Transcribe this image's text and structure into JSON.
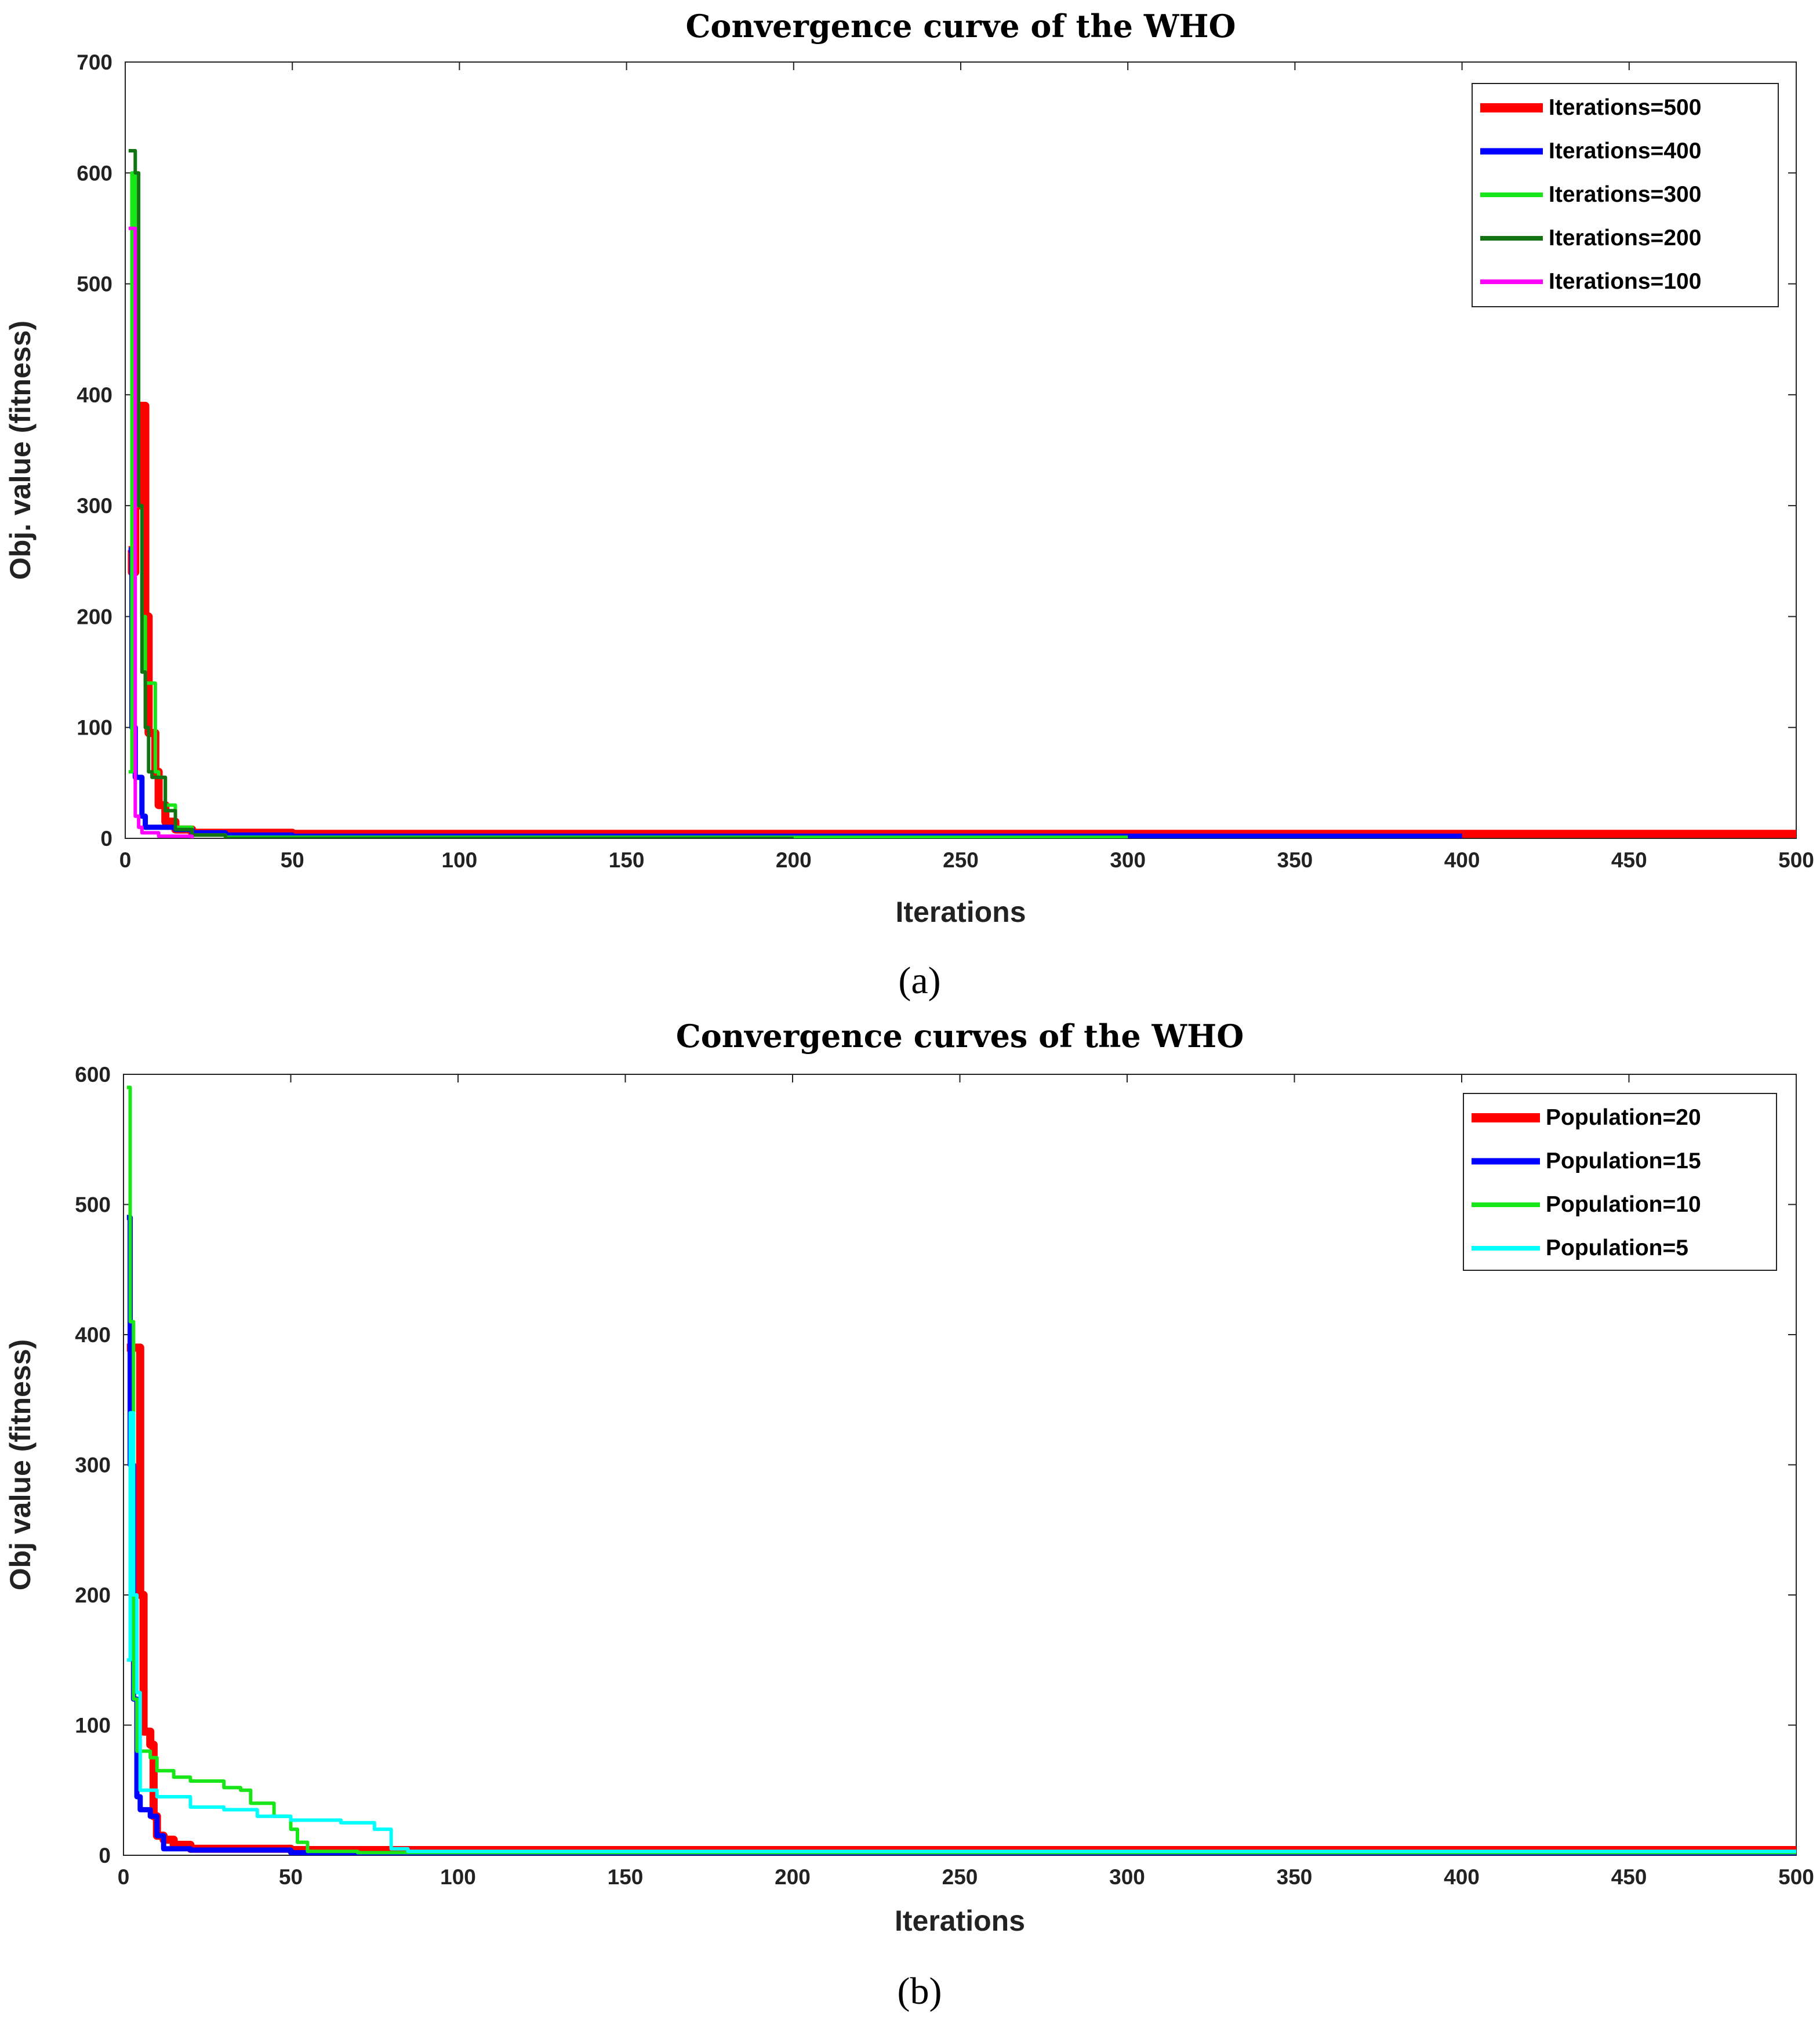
{
  "chart_data": [
    {
      "type": "line",
      "title": "Convergence curve of the WHO",
      "xlabel": "Iterations",
      "ylabel": "Obj. value (fitness)",
      "xlim": [
        0,
        500
      ],
      "ylim": [
        0,
        700
      ],
      "xticks": [
        0,
        50,
        100,
        150,
        200,
        250,
        300,
        350,
        400,
        450,
        500
      ],
      "yticks": [
        0,
        100,
        200,
        300,
        400,
        500,
        600,
        700
      ],
      "grid": false,
      "legend": "top-right",
      "caption": "(a)",
      "series": [
        {
          "name": "Iterations=500",
          "color": "#ff0000",
          "width": 14,
          "points": [
            [
              1,
              260
            ],
            [
              2,
              240
            ],
            [
              3,
              300
            ],
            [
              4,
              390
            ],
            [
              5,
              390
            ],
            [
              6,
              200
            ],
            [
              7,
              95
            ],
            [
              8,
              95
            ],
            [
              9,
              60
            ],
            [
              10,
              30
            ],
            [
              12,
              15
            ],
            [
              15,
              8
            ],
            [
              20,
              5
            ],
            [
              30,
              5
            ],
            [
              50,
              4
            ],
            [
              100,
              4
            ],
            [
              200,
              4
            ],
            [
              300,
              4
            ],
            [
              400,
              4
            ],
            [
              500,
              4
            ]
          ]
        },
        {
          "name": "Iterations=400",
          "color": "#0000ff",
          "width": 9,
          "points": [
            [
              1,
              260
            ],
            [
              2,
              100
            ],
            [
              3,
              55
            ],
            [
              4,
              55
            ],
            [
              5,
              20
            ],
            [
              6,
              10
            ],
            [
              10,
              10
            ],
            [
              15,
              8
            ],
            [
              20,
              5
            ],
            [
              30,
              3
            ],
            [
              50,
              2
            ],
            [
              100,
              2
            ],
            [
              200,
              2
            ],
            [
              300,
              2
            ],
            [
              400,
              2
            ]
          ]
        },
        {
          "name": "Iterations=300",
          "color": "#19e619",
          "width": 6,
          "points": [
            [
              1,
              60
            ],
            [
              2,
              600
            ],
            [
              3,
              300
            ],
            [
              5,
              200
            ],
            [
              6,
              140
            ],
            [
              8,
              140
            ],
            [
              9,
              60
            ],
            [
              10,
              55
            ],
            [
              12,
              30
            ],
            [
              15,
              10
            ],
            [
              20,
              3
            ],
            [
              30,
              1
            ],
            [
              50,
              1
            ],
            [
              100,
              1
            ],
            [
              200,
              1
            ],
            [
              300,
              1
            ]
          ]
        },
        {
          "name": "Iterations=200",
          "color": "#137313",
          "width": 6,
          "points": [
            [
              1,
              620
            ],
            [
              2,
              620
            ],
            [
              3,
              600
            ],
            [
              4,
              300
            ],
            [
              5,
              150
            ],
            [
              6,
              100
            ],
            [
              7,
              60
            ],
            [
              8,
              55
            ],
            [
              10,
              55
            ],
            [
              12,
              25
            ],
            [
              15,
              8
            ],
            [
              20,
              3
            ],
            [
              30,
              0
            ],
            [
              50,
              0
            ],
            [
              100,
              0
            ],
            [
              200,
              0
            ]
          ]
        },
        {
          "name": "Iterations=100",
          "color": "#ff00ff",
          "width": 6,
          "points": [
            [
              1,
              550
            ],
            [
              2,
              550
            ],
            [
              3,
              20
            ],
            [
              4,
              10
            ],
            [
              5,
              5
            ],
            [
              10,
              2
            ],
            [
              20,
              -2
            ],
            [
              30,
              -2
            ],
            [
              50,
              -2
            ],
            [
              100,
              -2
            ]
          ]
        }
      ]
    },
    {
      "type": "line",
      "title": "Convergence curves of the WHO",
      "xlabel": "Iterations",
      "ylabel": "Obj value (fitness)",
      "xlim": [
        0,
        500
      ],
      "ylim": [
        0,
        600
      ],
      "xticks": [
        0,
        50,
        100,
        150,
        200,
        250,
        300,
        350,
        400,
        450,
        500
      ],
      "yticks": [
        0,
        100,
        200,
        300,
        400,
        500,
        600
      ],
      "grid": false,
      "legend": "top-right",
      "caption": "(b)",
      "series": [
        {
          "name": "Population=20",
          "color": "#ff0000",
          "width": 14,
          "points": [
            [
              1,
              390
            ],
            [
              3,
              390
            ],
            [
              4,
              390
            ],
            [
              5,
              200
            ],
            [
              6,
              95
            ],
            [
              8,
              85
            ],
            [
              9,
              30
            ],
            [
              10,
              15
            ],
            [
              12,
              12
            ],
            [
              15,
              8
            ],
            [
              20,
              5
            ],
            [
              30,
              5
            ],
            [
              50,
              4
            ],
            [
              100,
              4
            ],
            [
              500,
              4
            ]
          ]
        },
        {
          "name": "Population=15",
          "color": "#0000ff",
          "width": 9,
          "points": [
            [
              1,
              490
            ],
            [
              2,
              300
            ],
            [
              3,
              120
            ],
            [
              4,
              45
            ],
            [
              5,
              35
            ],
            [
              8,
              30
            ],
            [
              10,
              15
            ],
            [
              12,
              5
            ],
            [
              20,
              4
            ],
            [
              50,
              2
            ],
            [
              55,
              1
            ],
            [
              100,
              1
            ],
            [
              500,
              1
            ]
          ]
        },
        {
          "name": "Population=10",
          "color": "#19e619",
          "width": 6,
          "points": [
            [
              1,
              590
            ],
            [
              2,
              410
            ],
            [
              3,
              120
            ],
            [
              4,
              80
            ],
            [
              8,
              75
            ],
            [
              10,
              65
            ],
            [
              15,
              60
            ],
            [
              20,
              57
            ],
            [
              30,
              52
            ],
            [
              35,
              50
            ],
            [
              38,
              40
            ],
            [
              45,
              30
            ],
            [
              50,
              20
            ],
            [
              52,
              10
            ],
            [
              55,
              3
            ],
            [
              70,
              2
            ],
            [
              100,
              2
            ],
            [
              500,
              2
            ]
          ]
        },
        {
          "name": "Population=5",
          "color": "#00ffff",
          "width": 6,
          "points": [
            [
              1,
              150
            ],
            [
              2,
              340
            ],
            [
              3,
              200
            ],
            [
              4,
              125
            ],
            [
              5,
              50
            ],
            [
              10,
              45
            ],
            [
              20,
              37
            ],
            [
              30,
              35
            ],
            [
              40,
              30
            ],
            [
              50,
              27
            ],
            [
              65,
              25
            ],
            [
              75,
              20
            ],
            [
              80,
              5
            ],
            [
              85,
              3
            ],
            [
              100,
              3
            ],
            [
              500,
              3
            ]
          ]
        }
      ]
    }
  ]
}
